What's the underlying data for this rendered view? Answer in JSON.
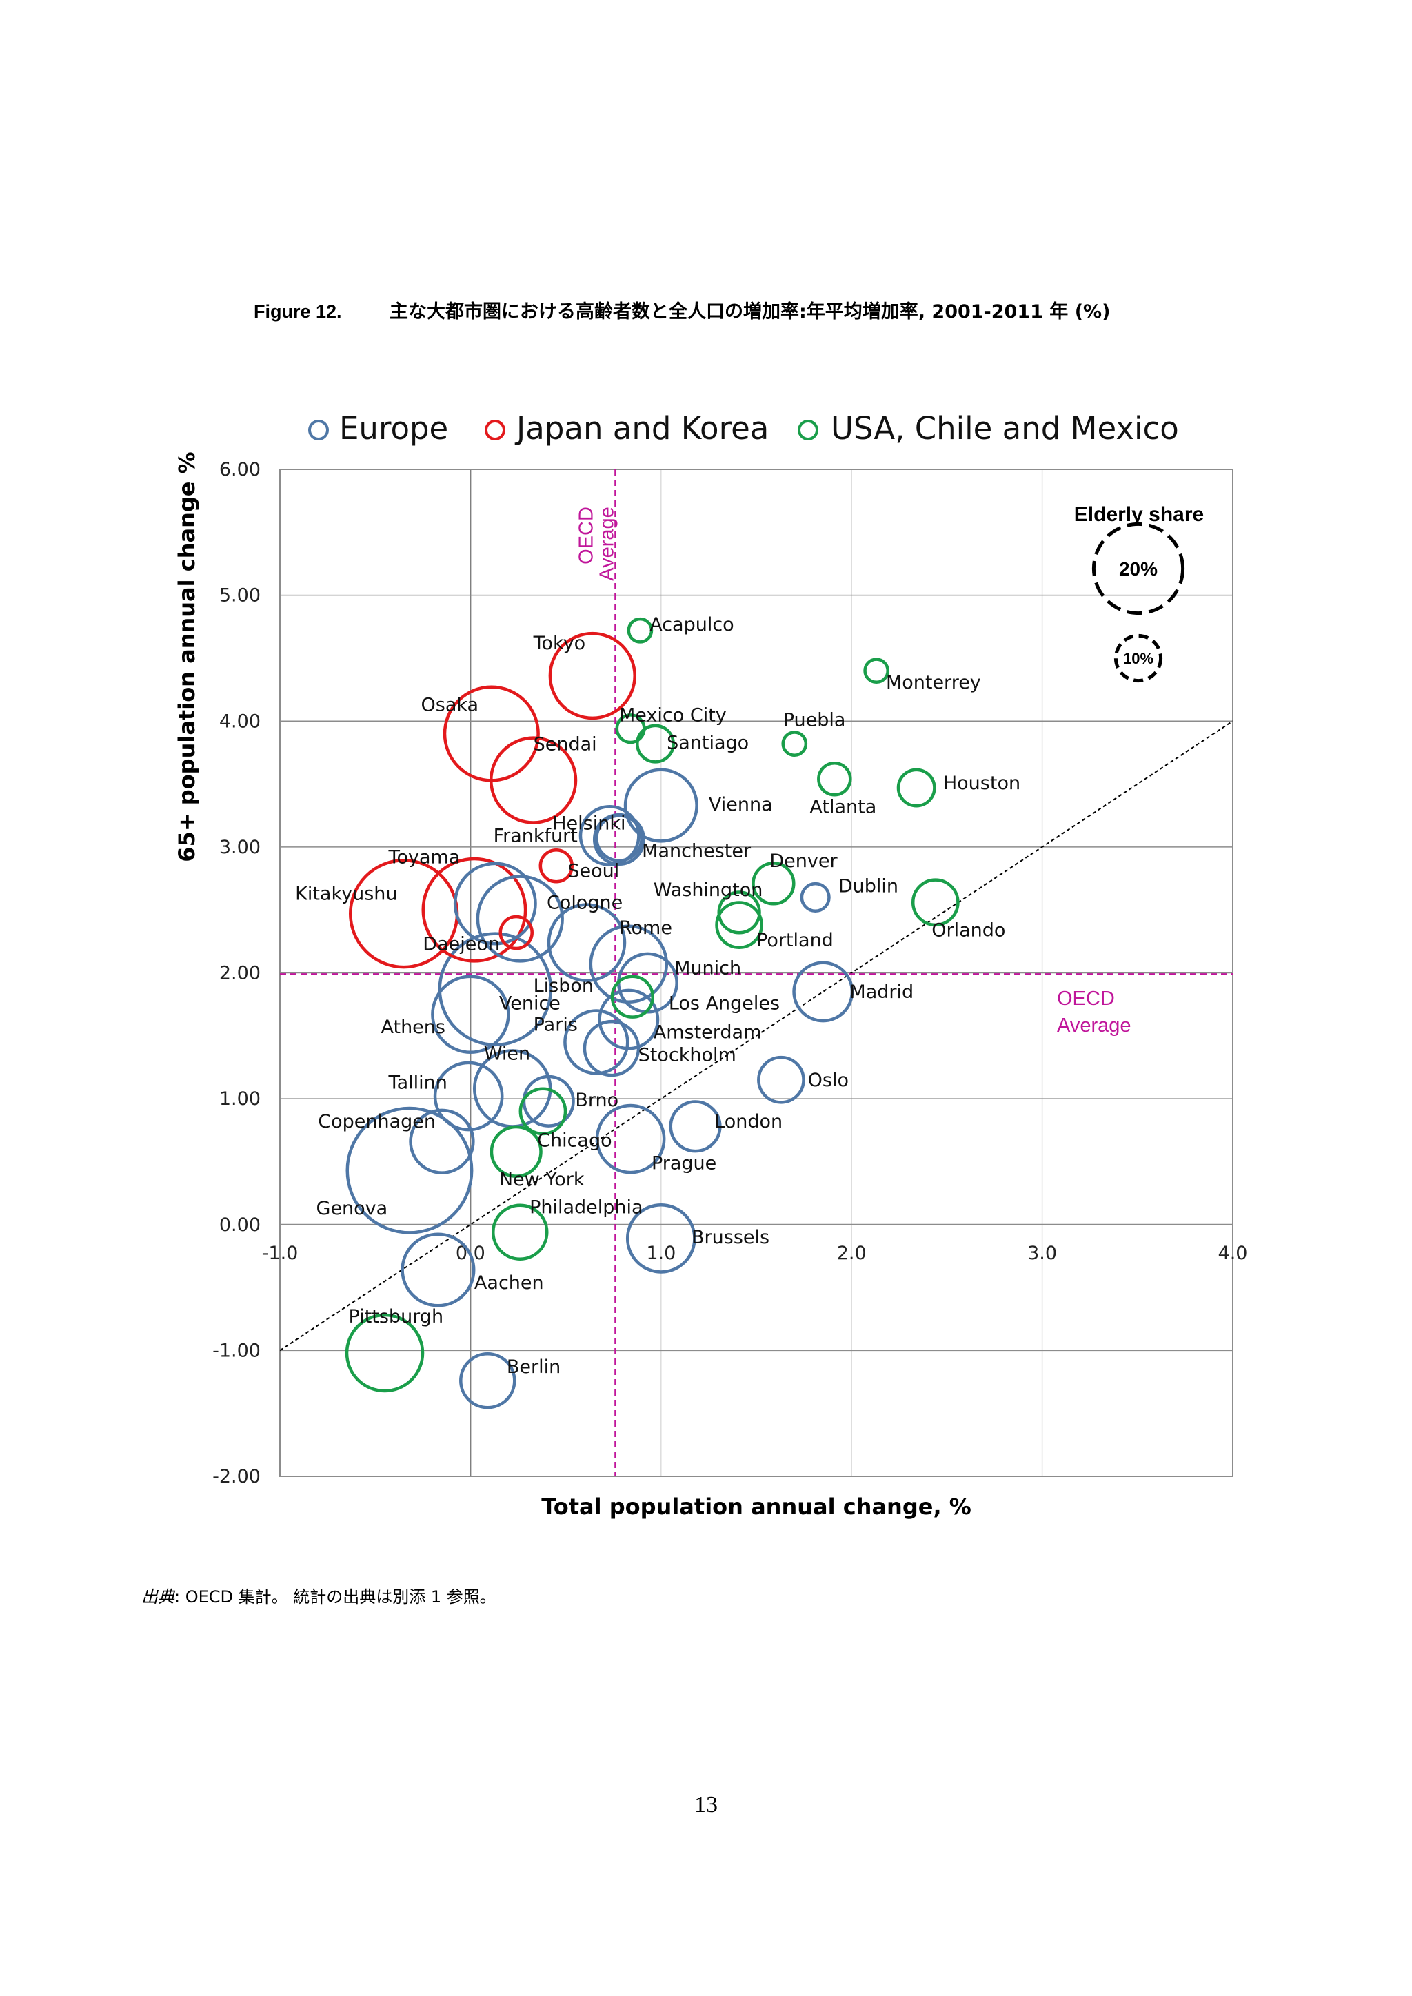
{
  "caption": {
    "figure_number": "Figure 12.",
    "title": "主な大都市圏における高齢者数と全人口の増加率:年平均増加率, 2001-2011 年 (%)"
  },
  "source_note": {
    "label": "出典",
    "text": ": OECD 集計。 統計の出典は別添 1 参照。"
  },
  "page_number": "13",
  "colors": {
    "europe": "#4f77a6",
    "japan_korea": "#e3191c",
    "usa_chile_mexico": "#1a9e4a",
    "oecd_average": "#c0169a",
    "grid": "#808080"
  },
  "chart_data": {
    "type": "scatter",
    "subtype": "bubble",
    "xlabel": "Total population annual change, %",
    "ylabel": "65+ population annual change %",
    "xlim": [
      -1.0,
      4.0
    ],
    "ylim": [
      -2.0,
      6.0
    ],
    "x_ticks": [
      "-1.0",
      "0.0",
      "1.0",
      "2.0",
      "3.0",
      "4.0"
    ],
    "y_ticks": [
      "-2.00",
      "-1.00",
      "0.00",
      "1.00",
      "2.00",
      "3.00",
      "4.00",
      "5.00",
      "6.00"
    ],
    "legend": {
      "placement": "top",
      "entries": [
        {
          "key": "europe",
          "label": "Europe"
        },
        {
          "key": "japan_korea",
          "label": "Japan and Korea"
        },
        {
          "key": "usa_chile_mexico",
          "label": "USA, Chile and Mexico"
        }
      ]
    },
    "size_legend": {
      "title": "Elderly share",
      "entries": [
        {
          "label": "20%",
          "share": 20
        },
        {
          "label": "10%",
          "share": 10
        }
      ]
    },
    "oecd_average": {
      "x": 0.76,
      "y": 1.99,
      "label": "OECD Average",
      "label_line1": "OECD",
      "label_line2": "Average"
    },
    "reference_line": {
      "type": "diagonal",
      "from": [
        -1.0,
        -1.0
      ],
      "to": [
        4.0,
        4.0
      ]
    },
    "series": [
      {
        "name": "Europe",
        "key": "europe",
        "points": [
          {
            "label": "Helsinki",
            "x": 0.73,
            "y": 3.09,
            "share": 13
          },
          {
            "label": "Frankfurt",
            "x": 0.78,
            "y": 3.07,
            "share": 10
          },
          {
            "label": "Vienna",
            "x": 1.0,
            "y": 3.33,
            "share": 16
          },
          {
            "label": "Manchester",
            "x": 0.78,
            "y": 3.06,
            "share": 11
          },
          {
            "label": "Dublin",
            "x": 1.81,
            "y": 2.6,
            "share": 6
          },
          {
            "label": "Cologne",
            "x": 0.13,
            "y": 2.55,
            "share": 18
          },
          {
            "label": "Rome",
            "x": 0.26,
            "y": 2.43,
            "share": 19
          },
          {
            "label": "Lisbon",
            "x": 0.61,
            "y": 2.24,
            "share": 17
          },
          {
            "label": "Munich",
            "x": 0.83,
            "y": 2.07,
            "share": 17
          },
          {
            "label": "Los Angeles",
            "x": 0.93,
            "y": 1.92,
            "share": 13
          },
          {
            "label": "Madrid",
            "x": 1.85,
            "y": 1.85,
            "share": 13
          },
          {
            "label": "Venice",
            "x": 0.13,
            "y": 1.87,
            "share": 25
          },
          {
            "label": "Athens",
            "x": 0.0,
            "y": 1.67,
            "share": 17
          },
          {
            "label": "Amsterdam",
            "x": 0.83,
            "y": 1.63,
            "share": 13
          },
          {
            "label": "Paris",
            "x": 0.66,
            "y": 1.45,
            "share": 14
          },
          {
            "label": "Stockholm",
            "x": 0.74,
            "y": 1.4,
            "share": 12
          },
          {
            "label": "Oslo",
            "x": 1.63,
            "y": 1.15,
            "share": 10
          },
          {
            "label": "Wien",
            "x": 0.22,
            "y": 1.08,
            "share": 17
          },
          {
            "label": "Tallinn",
            "x": -0.01,
            "y": 1.02,
            "share": 15
          },
          {
            "label": "Brno",
            "x": 0.41,
            "y": 0.98,
            "share": 11
          },
          {
            "label": "London",
            "x": 1.18,
            "y": 0.78,
            "share": 11
          },
          {
            "label": "Prague",
            "x": 0.84,
            "y": 0.68,
            "share": 15
          },
          {
            "label": "Copenhagen",
            "x": -0.15,
            "y": 0.66,
            "share": 14
          },
          {
            "label": "Genova",
            "x": -0.32,
            "y": 0.43,
            "share": 28
          },
          {
            "label": "Brussels",
            "x": 1.0,
            "y": -0.11,
            "share": 15
          },
          {
            "label": "Aachen",
            "x": -0.17,
            "y": -0.36,
            "share": 16
          },
          {
            "label": "Berlin",
            "x": 0.09,
            "y": -1.24,
            "share": 12
          }
        ]
      },
      {
        "name": "Japan and Korea",
        "key": "japan_korea",
        "points": [
          {
            "label": "Tokyo",
            "x": 0.64,
            "y": 4.36,
            "share": 19
          },
          {
            "label": "Osaka",
            "x": 0.11,
            "y": 3.9,
            "share": 21
          },
          {
            "label": "Sendai",
            "x": 0.33,
            "y": 3.53,
            "share": 19
          },
          {
            "label": "Seoul",
            "x": 0.45,
            "y": 2.85,
            "share": 7
          },
          {
            "label": "Kitakyushu",
            "x": -0.35,
            "y": 2.47,
            "share": 24
          },
          {
            "label": "Toyama",
            "x": 0.02,
            "y": 2.5,
            "share": 23
          },
          {
            "label": "Daejeon",
            "x": 0.24,
            "y": 2.32,
            "share": 7
          }
        ]
      },
      {
        "name": "USA, Chile and Mexico",
        "key": "usa_chile_mexico",
        "points": [
          {
            "label": "Acapulco",
            "x": 0.89,
            "y": 4.72,
            "share": 5
          },
          {
            "label": "Monterrey",
            "x": 2.13,
            "y": 4.4,
            "share": 5
          },
          {
            "label": "Mexico City",
            "x": 0.84,
            "y": 3.94,
            "share": 6
          },
          {
            "label": "Santiago",
            "x": 0.97,
            "y": 3.82,
            "share": 8
          },
          {
            "label": "Puebla",
            "x": 1.7,
            "y": 3.82,
            "share": 5
          },
          {
            "label": "Atlanta",
            "x": 1.91,
            "y": 3.54,
            "share": 7
          },
          {
            "label": "Houston",
            "x": 2.34,
            "y": 3.47,
            "share": 8
          },
          {
            "label": "Denver",
            "x": 1.59,
            "y": 2.71,
            "share": 9
          },
          {
            "label": "Washington",
            "x": 1.41,
            "y": 2.48,
            "share": 9
          },
          {
            "label": "Portland",
            "x": 1.41,
            "y": 2.38,
            "share": 10
          },
          {
            "label": "Orlando",
            "x": 2.44,
            "y": 2.56,
            "share": 10
          },
          {
            "label": "Los Angeles",
            "x": 0.85,
            "y": 1.81,
            "share": 9
          },
          {
            "label": "Chicago",
            "x": 0.38,
            "y": 0.9,
            "share": 10
          },
          {
            "label": "New York",
            "x": 0.24,
            "y": 0.58,
            "share": 11
          },
          {
            "label": "Philadelphia",
            "x": 0.26,
            "y": -0.06,
            "share": 12
          },
          {
            "label": "Pittsburgh",
            "x": -0.45,
            "y": -1.02,
            "share": 17
          }
        ]
      }
    ],
    "point_labels": [
      {
        "text": "Acapulco",
        "x": 0.94,
        "y": 4.72
      },
      {
        "text": "Tokyo",
        "x": 0.33,
        "y": 4.57
      },
      {
        "text": "Monterrey",
        "x": 2.18,
        "y": 4.26
      },
      {
        "text": "Osaka",
        "x": -0.26,
        "y": 4.08
      },
      {
        "text": "Mexico City",
        "x": 0.78,
        "y": 4.0
      },
      {
        "text": "Sendai",
        "x": 0.33,
        "y": 3.77
      },
      {
        "text": "Santiago",
        "x": 1.03,
        "y": 3.78
      },
      {
        "text": "Puebla",
        "x": 1.64,
        "y": 3.96
      },
      {
        "text": "Houston",
        "x": 2.48,
        "y": 3.46
      },
      {
        "text": "Vienna",
        "x": 1.25,
        "y": 3.29
      },
      {
        "text": "Atlanta",
        "x": 1.78,
        "y": 3.27
      },
      {
        "text": "Helsinki",
        "x": 0.43,
        "y": 3.14
      },
      {
        "text": "Frankfurt",
        "x": 0.12,
        "y": 3.04
      },
      {
        "text": "Toyama",
        "x": -0.43,
        "y": 2.87
      },
      {
        "text": "Manchester",
        "x": 0.9,
        "y": 2.92
      },
      {
        "text": "Seoul",
        "x": 0.51,
        "y": 2.76
      },
      {
        "text": "Denver",
        "x": 1.57,
        "y": 2.84
      },
      {
        "text": "Kitakyushu",
        "x": -0.92,
        "y": 2.58
      },
      {
        "text": "Washington",
        "x": 0.96,
        "y": 2.61
      },
      {
        "text": "Dublin",
        "x": 1.93,
        "y": 2.64
      },
      {
        "text": "Cologne",
        "x": 0.4,
        "y": 2.51
      },
      {
        "text": "Rome",
        "x": 0.78,
        "y": 2.31
      },
      {
        "text": "Orlando",
        "x": 2.42,
        "y": 2.29
      },
      {
        "text": "Portland",
        "x": 1.5,
        "y": 2.21
      },
      {
        "text": "Daejeon",
        "x": -0.25,
        "y": 2.18
      },
      {
        "text": "Munich",
        "x": 1.07,
        "y": 1.99
      },
      {
        "text": "Lisbon",
        "x": 0.33,
        "y": 1.85
      },
      {
        "text": "Madrid",
        "x": 1.99,
        "y": 1.8
      },
      {
        "text": "Venice",
        "x": 0.15,
        "y": 1.71
      },
      {
        "text": "Los Angeles",
        "x": 1.04,
        "y": 1.71
      },
      {
        "text": "Athens",
        "x": -0.47,
        "y": 1.52
      },
      {
        "text": "Paris",
        "x": 0.33,
        "y": 1.54
      },
      {
        "text": "Amsterdam",
        "x": 0.96,
        "y": 1.48
      },
      {
        "text": "Wien",
        "x": 0.07,
        "y": 1.31
      },
      {
        "text": "Stockholm",
        "x": 0.88,
        "y": 1.3
      },
      {
        "text": "Oslo",
        "x": 1.77,
        "y": 1.1
      },
      {
        "text": "Tallinn",
        "x": -0.43,
        "y": 1.08
      },
      {
        "text": "Brno",
        "x": 0.55,
        "y": 0.94
      },
      {
        "text": "Copenhagen",
        "x": -0.8,
        "y": 0.77
      },
      {
        "text": "London",
        "x": 1.28,
        "y": 0.77
      },
      {
        "text": "Chicago",
        "x": 0.35,
        "y": 0.62
      },
      {
        "text": "Prague",
        "x": 0.95,
        "y": 0.44
      },
      {
        "text": "New York",
        "x": 0.15,
        "y": 0.31
      },
      {
        "text": "Philadelphia",
        "x": 0.31,
        "y": 0.09
      },
      {
        "text": "Genova",
        "x": -0.81,
        "y": 0.08
      },
      {
        "text": "Brussels",
        "x": 1.16,
        "y": -0.15
      },
      {
        "text": "Aachen",
        "x": 0.02,
        "y": -0.51
      },
      {
        "text": "Pittsburgh",
        "x": -0.64,
        "y": -0.78
      },
      {
        "text": "Berlin",
        "x": 0.19,
        "y": -1.18
      }
    ]
  }
}
